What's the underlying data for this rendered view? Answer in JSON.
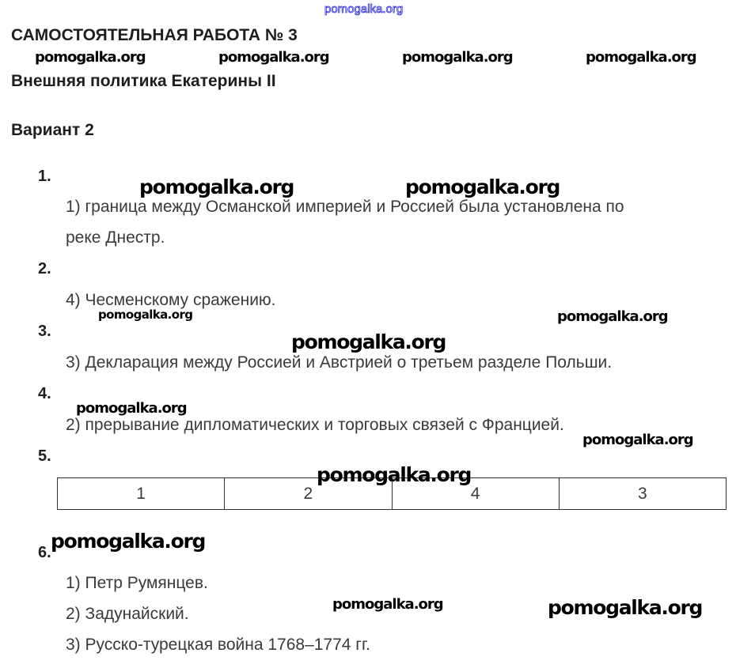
{
  "header": {
    "title": "САМОСТОЯТЕЛЬНАЯ РАБОТА № 3",
    "subtitle": "Внешняя политика Екатерины II",
    "variant": "Вариант 2"
  },
  "questions": [
    {
      "number": "1.",
      "answers": [
        "1) граница между Османской империей и Россией была установлена по",
        "реке Днестр."
      ]
    },
    {
      "number": "2.",
      "answers": [
        "4) Чесменскому сражению."
      ]
    },
    {
      "number": "3.",
      "answers": [
        "3) Декларация между Россией и Австрией о третьем разделе Польши."
      ]
    },
    {
      "number": "4.",
      "answers": [
        "2) прерывание дипломатических и торговых связей с Францией."
      ]
    },
    {
      "number": "5.",
      "table": [
        "1",
        "2",
        "4",
        "3"
      ]
    },
    {
      "number": "6.",
      "answers": [
        "1) Петр Румянцев.",
        "2) Задунайский.",
        "3) Русско-турецкая война 1768–1774 гг."
      ]
    }
  ],
  "watermark": "pomogalka.org",
  "colors": {
    "text": "#2b2b2b",
    "watermark_top": "#2b2bd8"
  }
}
